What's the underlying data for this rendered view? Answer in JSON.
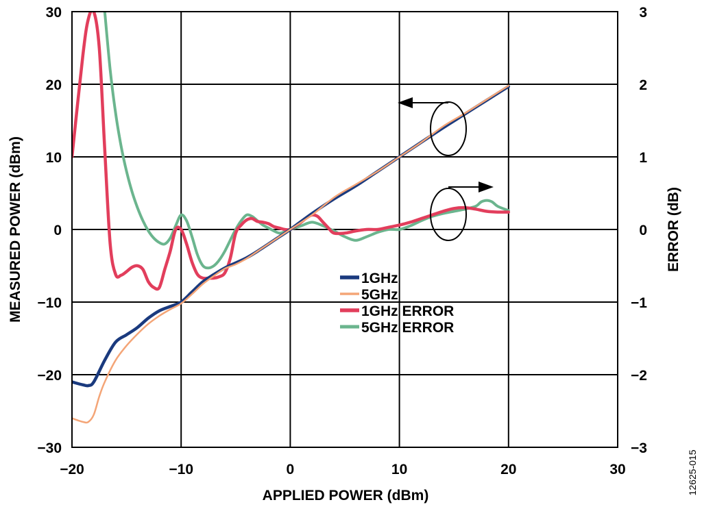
{
  "chart_data": {
    "type": "line",
    "xlabel": "APPLIED POWER (dBm)",
    "ylabel": "MEASURED POWER (dBm)",
    "y2label": "ERROR (dB)",
    "xlim": [
      -20,
      30
    ],
    "ylim": [
      -30,
      30
    ],
    "y2lim": [
      -3,
      3
    ],
    "grid": true,
    "legend_position": "center",
    "x_ticks": [
      "−20",
      "−10",
      "0",
      "10",
      "20",
      "30"
    ],
    "y_ticks": [
      "−30",
      "−20",
      "−10",
      "0",
      "10",
      "20",
      "30"
    ],
    "y2_ticks": [
      "−3",
      "−2",
      "−1",
      "0",
      "1",
      "2",
      "3"
    ],
    "colors": {
      "1GHz": "#1a3a7e",
      "5GHz": "#f4a577",
      "1GHz ERROR": "#e23e5c",
      "5GHz ERROR": "#6bb58e"
    },
    "series": [
      {
        "name": "1GHz",
        "axis": "left",
        "x": [
          -20,
          -19,
          -18.5,
          -18,
          -17,
          -16,
          -15,
          -14,
          -13,
          -12,
          -11,
          -10,
          -9,
          -8,
          -7,
          -6,
          -5,
          -4,
          -3,
          -2,
          -1,
          0,
          2,
          4,
          6,
          8,
          10,
          12,
          14,
          16,
          18,
          20
        ],
        "y": [
          -21,
          -21.4,
          -21.5,
          -21,
          -18,
          -15.5,
          -14.5,
          -13.5,
          -12.2,
          -11.2,
          -10.6,
          -10,
          -8.6,
          -7.2,
          -6.2,
          -5.3,
          -4.6,
          -3.9,
          -3,
          -2,
          -1,
          0,
          2.2,
          4.2,
          6,
          8,
          10,
          12,
          14,
          15.9,
          17.8,
          19.7
        ]
      },
      {
        "name": "5GHz",
        "axis": "left",
        "x": [
          -20,
          -19,
          -18.5,
          -18,
          -17.5,
          -17,
          -16,
          -15,
          -14,
          -13,
          -12,
          -11,
          -10,
          -9,
          -8,
          -7,
          -6,
          -5,
          -4,
          -3,
          -2,
          -1,
          0,
          2,
          4,
          6,
          8,
          10,
          12,
          14,
          16,
          18,
          20
        ],
        "y": [
          -26,
          -26.5,
          -26.5,
          -25.5,
          -23,
          -21,
          -18,
          -16,
          -14.4,
          -13,
          -11.9,
          -11,
          -10.2,
          -8.9,
          -7.5,
          -6.4,
          -5.4,
          -4.8,
          -4,
          -3,
          -2,
          -1,
          0,
          2,
          4.4,
          6.2,
          8,
          10,
          12,
          14.2,
          16,
          17.9,
          19.8
        ]
      },
      {
        "name": "1GHz ERROR",
        "axis": "right",
        "x": [
          -20,
          -19,
          -18.5,
          -18,
          -17.5,
          -17,
          -16.5,
          -16,
          -15.5,
          -15,
          -14.5,
          -14,
          -13.5,
          -13,
          -12.5,
          -12,
          -11.5,
          -11,
          -10.5,
          -10,
          -9.5,
          -9,
          -8.5,
          -8,
          -7.5,
          -7,
          -6.5,
          -6,
          -5.5,
          -5,
          -4.5,
          -4,
          -3.5,
          -3,
          -2.5,
          -2,
          -1.5,
          -1,
          -0.5,
          0,
          0.5,
          1,
          1.5,
          2,
          2.5,
          3,
          3.5,
          4,
          5,
          6,
          7,
          8,
          9,
          10,
          11,
          12,
          13,
          14,
          15,
          16,
          17,
          18,
          19,
          20
        ],
        "y": [
          1.0,
          2.4,
          2.9,
          3.0,
          2.5,
          1.1,
          -0.2,
          -0.62,
          -0.63,
          -0.58,
          -0.52,
          -0.5,
          -0.55,
          -0.72,
          -0.8,
          -0.8,
          -0.55,
          -0.3,
          0.0,
          0.0,
          -0.2,
          -0.45,
          -0.62,
          -0.67,
          -0.67,
          -0.67,
          -0.65,
          -0.6,
          -0.4,
          -0.05,
          0.06,
          0.13,
          0.15,
          0.11,
          0.1,
          0.08,
          0.04,
          0.02,
          0.0,
          0.0,
          0.05,
          0.1,
          0.16,
          0.2,
          0.18,
          0.1,
          0.02,
          -0.05,
          -0.05,
          -0.02,
          0.0,
          0.0,
          0.03,
          0.06,
          0.1,
          0.15,
          0.2,
          0.25,
          0.29,
          0.3,
          0.28,
          0.25,
          0.24,
          0.24
        ]
      },
      {
        "name": "5GHz ERROR",
        "axis": "right",
        "x": [
          -17,
          -16.5,
          -16,
          -15.5,
          -15,
          -14.5,
          -14,
          -13.5,
          -13,
          -12.5,
          -12,
          -11.5,
          -11,
          -10.5,
          -10,
          -9.5,
          -9,
          -8.5,
          -8,
          -7.5,
          -7,
          -6.5,
          -6,
          -5.5,
          -5,
          -4.5,
          -4,
          -3.5,
          -3,
          -2.5,
          -2,
          -1.5,
          -1,
          -0.5,
          0,
          1,
          2,
          3,
          4,
          5,
          6,
          7,
          8,
          9,
          10,
          11,
          12,
          13,
          14,
          15,
          16,
          17,
          17.5,
          18,
          18.5,
          19,
          20
        ],
        "y": [
          3.0,
          2.2,
          1.6,
          1.15,
          0.8,
          0.52,
          0.3,
          0.12,
          -0.02,
          -0.12,
          -0.18,
          -0.2,
          -0.12,
          0.05,
          0.2,
          0.12,
          -0.1,
          -0.35,
          -0.5,
          -0.53,
          -0.5,
          -0.42,
          -0.3,
          -0.15,
          0.0,
          0.12,
          0.2,
          0.18,
          0.12,
          0.06,
          0.02,
          -0.02,
          -0.05,
          -0.03,
          0.0,
          0.05,
          0.1,
          0.05,
          -0.02,
          -0.1,
          -0.15,
          -0.1,
          -0.04,
          0.0,
          0.0,
          0.05,
          0.12,
          0.18,
          0.22,
          0.25,
          0.28,
          0.32,
          0.38,
          0.4,
          0.38,
          0.32,
          0.26
        ]
      }
    ],
    "legend": [
      "1GHz",
      "5GHz",
      "1GHz ERROR",
      "5GHz ERROR"
    ],
    "figure_id": "12625-015"
  }
}
